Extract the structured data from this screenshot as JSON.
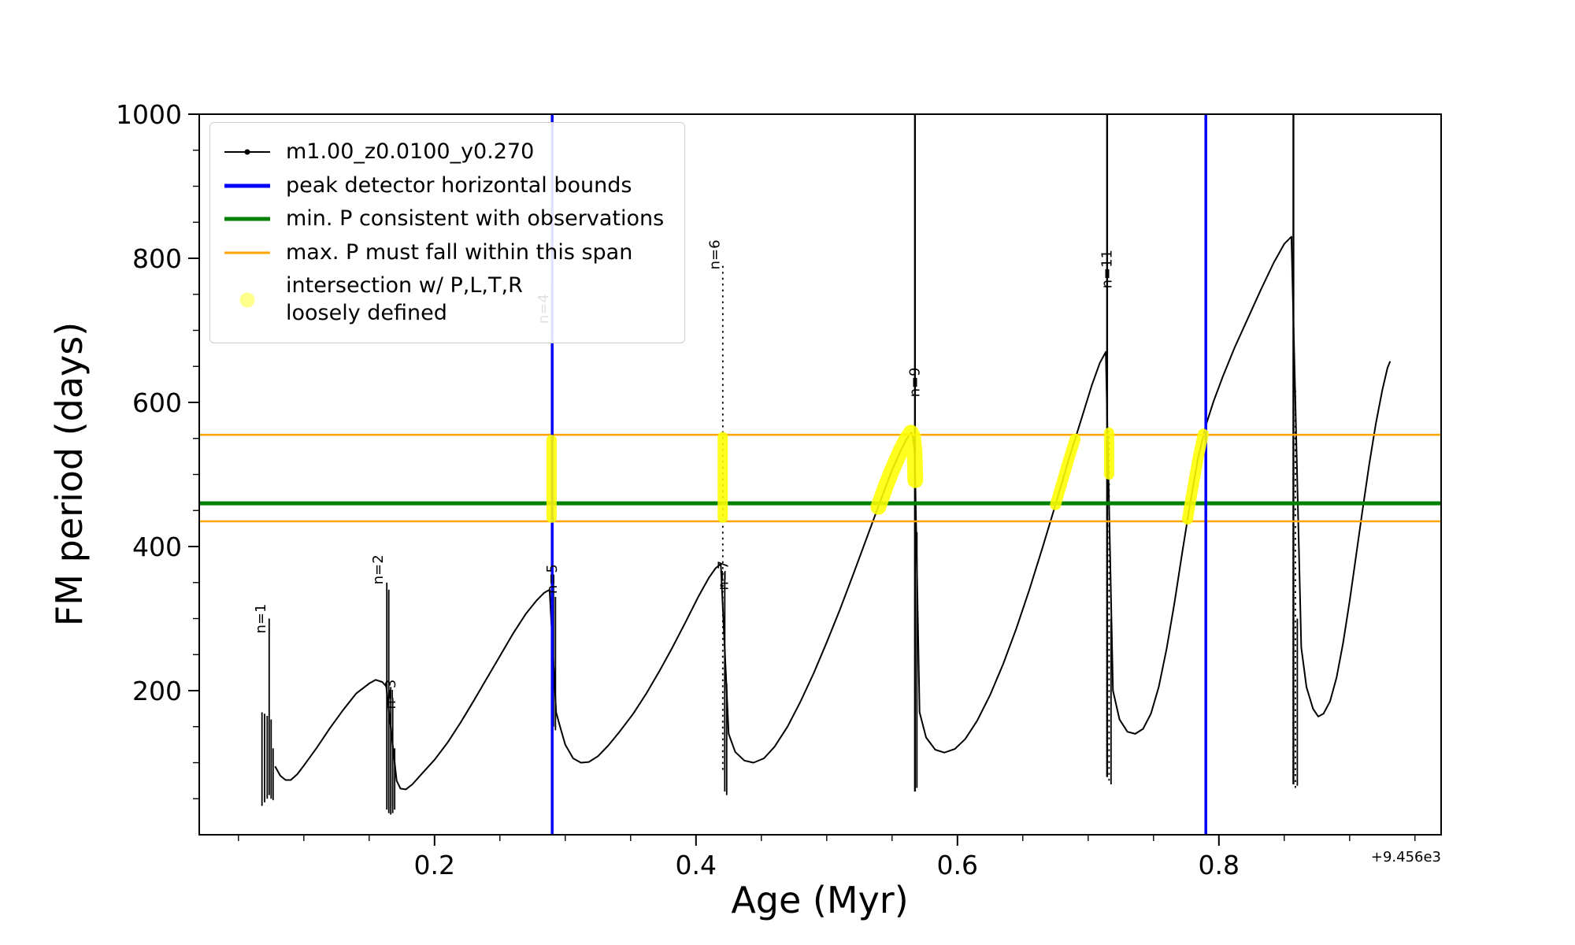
{
  "legend": {
    "entries": [
      {
        "label": "m1.00_z0.0100_y0.270",
        "color": "#000000",
        "type": "line+marker"
      },
      {
        "label": "peak detector horizontal bounds",
        "color": "#0000ff",
        "type": "line"
      },
      {
        "label": "min. P consistent with observations",
        "color": "#008000",
        "type": "line"
      },
      {
        "label": "max. P must fall within this span",
        "color": "#ffa500",
        "type": "line"
      },
      {
        "label": "intersection w/ P,L,T,R\nloosely defined",
        "color": "rgba(255,255,0,0.45)",
        "type": "marker"
      }
    ]
  },
  "chart_data": {
    "type": "line",
    "title": "",
    "xlabel": "Age (Myr)",
    "ylabel": "FM period (days)",
    "x_axis_offset": "+9.456e3",
    "xlim": [
      0.02,
      0.97
    ],
    "ylim": [
      0,
      1000
    ],
    "xticks": [
      0.2,
      0.4,
      0.6,
      0.8
    ],
    "xtick_labels": [
      "0.2",
      "0.4",
      "0.6",
      "0.8"
    ],
    "yticks": [
      200,
      400,
      600,
      800,
      1000
    ],
    "ytick_labels": [
      "200",
      "400",
      "600",
      "800",
      "1000"
    ],
    "x_minor_step": 0.05,
    "y_minor_step": 50,
    "grid": false,
    "legend_position": "upper left",
    "highlight_color": "#ffff00",
    "series": [
      {
        "name": "m1.00_z0.0100_y0.270",
        "color": "#000000",
        "points": [
          [
            0.078,
            95
          ],
          [
            0.082,
            82
          ],
          [
            0.086,
            76
          ],
          [
            0.09,
            76
          ],
          [
            0.095,
            84
          ],
          [
            0.1,
            96
          ],
          [
            0.11,
            121
          ],
          [
            0.12,
            148
          ],
          [
            0.13,
            173
          ],
          [
            0.14,
            196
          ],
          [
            0.15,
            210
          ],
          [
            0.155,
            215
          ],
          [
            0.16,
            212
          ],
          [
            0.163,
            206
          ],
          [
            0.171,
            75
          ],
          [
            0.174,
            64
          ],
          [
            0.178,
            63
          ],
          [
            0.183,
            70
          ],
          [
            0.19,
            84
          ],
          [
            0.2,
            104
          ],
          [
            0.21,
            128
          ],
          [
            0.22,
            156
          ],
          [
            0.23,
            186
          ],
          [
            0.24,
            217
          ],
          [
            0.25,
            248
          ],
          [
            0.26,
            279
          ],
          [
            0.27,
            307
          ],
          [
            0.278,
            325
          ],
          [
            0.284,
            336
          ],
          [
            0.288,
            340
          ],
          [
            0.293,
            170
          ],
          [
            0.296,
            150
          ],
          [
            0.3,
            125
          ],
          [
            0.306,
            106
          ],
          [
            0.312,
            100
          ],
          [
            0.318,
            101
          ],
          [
            0.325,
            109
          ],
          [
            0.333,
            124
          ],
          [
            0.342,
            144
          ],
          [
            0.352,
            168
          ],
          [
            0.362,
            196
          ],
          [
            0.372,
            227
          ],
          [
            0.382,
            260
          ],
          [
            0.392,
            295
          ],
          [
            0.402,
            331
          ],
          [
            0.41,
            357
          ],
          [
            0.415,
            370
          ],
          [
            0.419,
            376
          ],
          [
            0.425,
            140
          ],
          [
            0.43,
            115
          ],
          [
            0.437,
            103
          ],
          [
            0.444,
            100
          ],
          [
            0.452,
            106
          ],
          [
            0.46,
            122
          ],
          [
            0.47,
            150
          ],
          [
            0.48,
            185
          ],
          [
            0.49,
            224
          ],
          [
            0.5,
            267
          ],
          [
            0.51,
            312
          ],
          [
            0.52,
            360
          ],
          [
            0.53,
            409
          ],
          [
            0.54,
            458
          ],
          [
            0.55,
            506
          ],
          [
            0.556,
            531
          ],
          [
            0.561,
            549
          ],
          [
            0.5645,
            558
          ],
          [
            0.566,
            552
          ],
          [
            0.5672,
            530
          ],
          [
            0.5678,
            490
          ],
          [
            0.571,
            170
          ],
          [
            0.576,
            135
          ],
          [
            0.583,
            118
          ],
          [
            0.59,
            114
          ],
          [
            0.598,
            119
          ],
          [
            0.606,
            133
          ],
          [
            0.615,
            158
          ],
          [
            0.625,
            194
          ],
          [
            0.635,
            237
          ],
          [
            0.645,
            286
          ],
          [
            0.655,
            340
          ],
          [
            0.665,
            398
          ],
          [
            0.675,
            458
          ],
          [
            0.685,
            520
          ],
          [
            0.695,
            578
          ],
          [
            0.703,
            625
          ],
          [
            0.709,
            655
          ],
          [
            0.7135,
            670
          ],
          [
            0.719,
            200
          ],
          [
            0.724,
            160
          ],
          [
            0.73,
            143
          ],
          [
            0.736,
            140
          ],
          [
            0.742,
            147
          ],
          [
            0.748,
            168
          ],
          [
            0.754,
            205
          ],
          [
            0.76,
            258
          ],
          [
            0.766,
            322
          ],
          [
            0.772,
            392
          ],
          [
            0.778,
            460
          ],
          [
            0.784,
            522
          ],
          [
            0.79,
            568
          ],
          [
            0.796,
            602
          ],
          [
            0.803,
            636
          ],
          [
            0.812,
            676
          ],
          [
            0.822,
            716
          ],
          [
            0.832,
            756
          ],
          [
            0.842,
            794
          ],
          [
            0.85,
            820
          ],
          [
            0.8555,
            830
          ],
          [
            0.863,
            260
          ],
          [
            0.867,
            205
          ],
          [
            0.872,
            175
          ],
          [
            0.876,
            164
          ],
          [
            0.88,
            168
          ],
          [
            0.885,
            185
          ],
          [
            0.89,
            218
          ],
          [
            0.895,
            266
          ],
          [
            0.9,
            324
          ],
          [
            0.905,
            388
          ],
          [
            0.91,
            452
          ],
          [
            0.915,
            514
          ],
          [
            0.92,
            570
          ],
          [
            0.925,
            617
          ],
          [
            0.929,
            648
          ],
          [
            0.931,
            657
          ]
        ]
      }
    ],
    "spikes": [
      [
        0.068,
        40,
        170
      ],
      [
        0.07,
        45,
        168
      ],
      [
        0.072,
        50,
        165
      ],
      [
        0.0735,
        55,
        300
      ],
      [
        0.075,
        50,
        160
      ],
      [
        0.0765,
        48,
        120
      ],
      [
        0.1635,
        35,
        350
      ],
      [
        0.165,
        30,
        340
      ],
      [
        0.1665,
        28,
        205
      ],
      [
        0.168,
        30,
        190
      ],
      [
        0.1695,
        35,
        120
      ],
      [
        0.2895,
        160,
        760
      ],
      [
        0.291,
        150,
        360
      ],
      [
        0.2925,
        145,
        330
      ],
      [
        0.4205,
        90,
        795
      ],
      [
        0.422,
        60,
        365
      ],
      [
        0.4235,
        55,
        210
      ],
      [
        0.5675,
        60,
        1000
      ],
      [
        0.569,
        65,
        420
      ],
      [
        0.7145,
        80,
        1000
      ],
      [
        0.716,
        75,
        560
      ],
      [
        0.7175,
        70,
        300
      ],
      [
        0.857,
        70,
        1000
      ],
      [
        0.8585,
        65,
        620
      ],
      [
        0.86,
        68,
        300
      ]
    ],
    "vlines": [
      {
        "x": 0.29,
        "color": "#0000ff",
        "w": 3.5
      },
      {
        "x": 0.79,
        "color": "#0000ff",
        "w": 3.5
      }
    ],
    "hlines": [
      {
        "y": 555,
        "color": "#ffa500",
        "w": 2.5,
        "name": "max-P-upper-bound"
      },
      {
        "y": 460,
        "color": "#008000",
        "w": 5,
        "name": "min-P-line"
      },
      {
        "y": 435,
        "color": "#ffa500",
        "w": 2.5,
        "name": "max-P-lower-bound"
      }
    ],
    "highlights": [
      {
        "w": 13,
        "points": [
          [
            0.2895,
            440
          ],
          [
            0.2895,
            548
          ]
        ]
      },
      {
        "w": 13,
        "points": [
          [
            0.4205,
            440
          ],
          [
            0.4205,
            552
          ]
        ]
      },
      {
        "w": 20,
        "points": [
          [
            0.5395,
            455
          ],
          [
            0.545,
            483
          ],
          [
            0.55,
            506
          ],
          [
            0.556,
            531
          ],
          [
            0.561,
            549
          ],
          [
            0.5645,
            558
          ],
          [
            0.566,
            552
          ],
          [
            0.5672,
            530
          ],
          [
            0.5678,
            492
          ]
        ]
      },
      {
        "w": 14,
        "points": [
          [
            0.675,
            458
          ],
          [
            0.68,
            489
          ],
          [
            0.685,
            520
          ],
          [
            0.69,
            549
          ]
        ]
      },
      {
        "w": 13,
        "points": [
          [
            0.716,
            500
          ],
          [
            0.716,
            558
          ]
        ]
      },
      {
        "w": 14,
        "points": [
          [
            0.776,
            438
          ],
          [
            0.778,
            460
          ],
          [
            0.784,
            522
          ],
          [
            0.788,
            556
          ]
        ]
      }
    ],
    "annotations": [
      {
        "x": 0.0705,
        "y": 300,
        "text": "n=1"
      },
      {
        "x": 0.1605,
        "y": 368,
        "text": "n=2"
      },
      {
        "x": 0.17,
        "y": 195,
        "text": "n=3"
      },
      {
        "x": 0.287,
        "y": 730,
        "text": "n=4"
      },
      {
        "x": 0.2935,
        "y": 355,
        "text": "n=5"
      },
      {
        "x": 0.418,
        "y": 805,
        "text": "n=6"
      },
      {
        "x": 0.4245,
        "y": 360,
        "text": "n=7"
      },
      {
        "x": 0.571,
        "y": 628,
        "text": "n=9"
      },
      {
        "x": 0.718,
        "y": 785,
        "text": "n=11"
      }
    ]
  }
}
